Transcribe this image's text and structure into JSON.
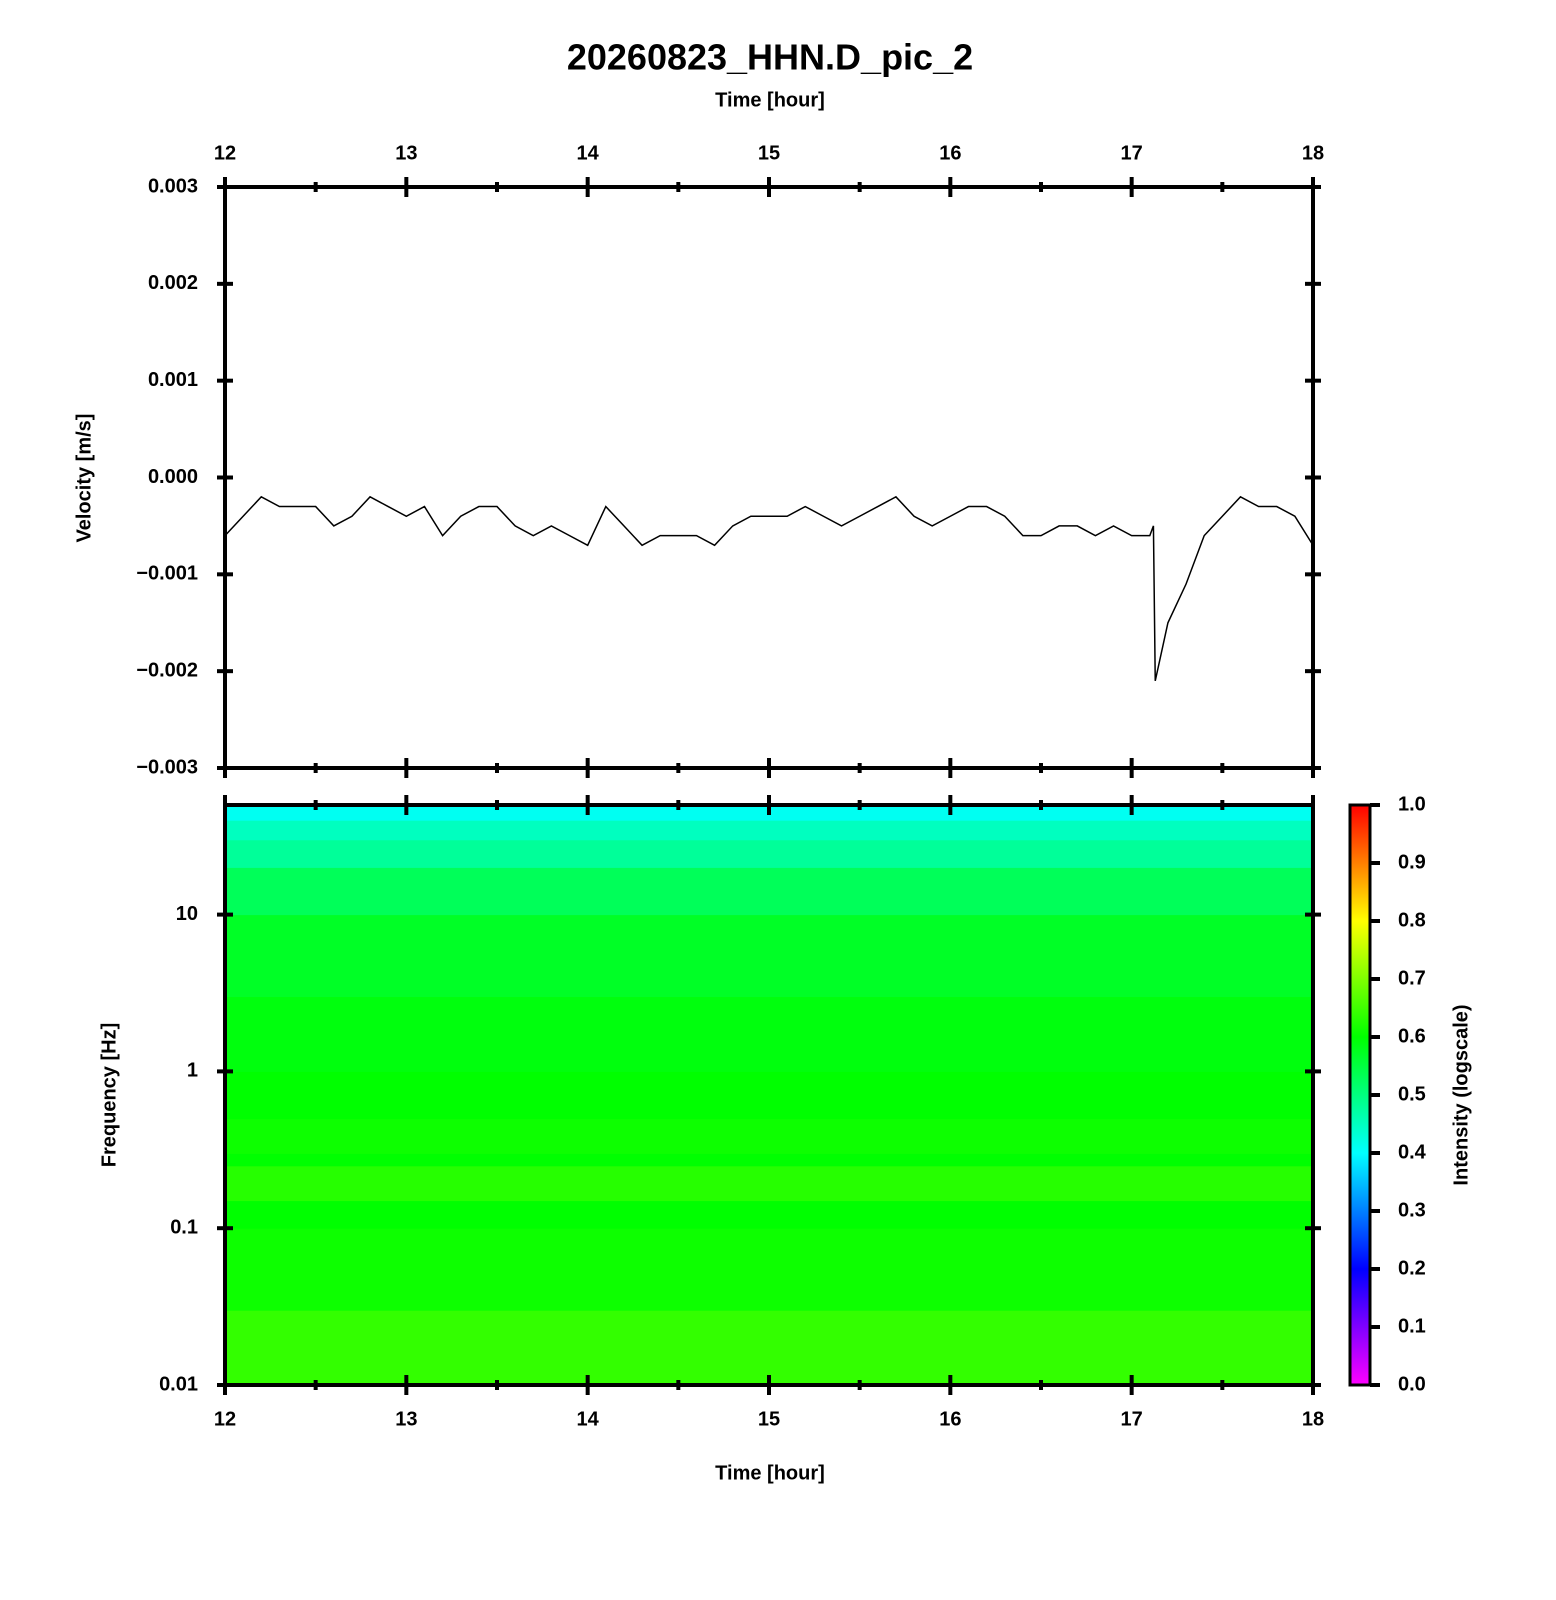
{
  "chart_data": [
    {
      "type": "line",
      "title": "20260823_HHN.D_pic_2",
      "x_label": "Time [hour]",
      "y_label": "Velocity [m/s]",
      "color": "#000000",
      "x": [
        12.0,
        12.1,
        12.2,
        12.3,
        12.4,
        12.5,
        12.6,
        12.7,
        12.8,
        12.9,
        13.0,
        13.1,
        13.2,
        13.3,
        13.4,
        13.5,
        13.6,
        13.7,
        13.8,
        13.9,
        14.0,
        14.1,
        14.2,
        14.3,
        14.4,
        14.5,
        14.6,
        14.7,
        14.8,
        14.9,
        15.0,
        15.1,
        15.2,
        15.3,
        15.4,
        15.5,
        15.6,
        15.7,
        15.8,
        15.9,
        16.0,
        16.1,
        16.2,
        16.3,
        16.4,
        16.5,
        16.6,
        16.7,
        16.8,
        16.9,
        17.0,
        17.1,
        17.12,
        17.13,
        17.2,
        17.3,
        17.4,
        17.5,
        17.6,
        17.7,
        17.8,
        17.9,
        18.0
      ],
      "values": [
        -0.0006,
        -0.0004,
        -0.0002,
        -0.0003,
        -0.0003,
        -0.0003,
        -0.0005,
        -0.0004,
        -0.0002,
        -0.0003,
        -0.0004,
        -0.0003,
        -0.0006,
        -0.0004,
        -0.0003,
        -0.0003,
        -0.0005,
        -0.0006,
        -0.0005,
        -0.0006,
        -0.0007,
        -0.0003,
        -0.0005,
        -0.0007,
        -0.0006,
        -0.0006,
        -0.0006,
        -0.0007,
        -0.0005,
        -0.0004,
        -0.0004,
        -0.0004,
        -0.0003,
        -0.0004,
        -0.0005,
        -0.0004,
        -0.0003,
        -0.0002,
        -0.0004,
        -0.0005,
        -0.0004,
        -0.0003,
        -0.0003,
        -0.0004,
        -0.0006,
        -0.0006,
        -0.0005,
        -0.0005,
        -0.0006,
        -0.0005,
        -0.0006,
        -0.0006,
        -0.0005,
        -0.0021,
        -0.0015,
        -0.0011,
        -0.0006,
        -0.0004,
        -0.0002,
        -0.0003,
        -0.0003,
        -0.0004,
        -0.0007
      ],
      "xlim": [
        12,
        18
      ],
      "xticks": [
        12,
        13,
        14,
        15,
        16,
        17,
        18
      ],
      "xminorticks": [
        12.5,
        13.5,
        14.5,
        15.5,
        16.5,
        17.5
      ],
      "ylim": [
        -0.003,
        0.003
      ],
      "yticks": [
        {
          "value": -0.003,
          "label": "−0.003"
        },
        {
          "value": -0.002,
          "label": "−0.002"
        },
        {
          "value": -0.001,
          "label": "−0.001"
        },
        {
          "value": 0,
          "label": "0.000"
        },
        0.001,
        0.002,
        0.003
      ]
    },
    {
      "type": "heatmap",
      "x_label": "Time [hour]",
      "y_label": "Frequency [Hz]",
      "colorbar_label": "Intensity (logscale)",
      "yscale": "log",
      "x_edges": [
        12,
        18
      ],
      "y_edges": [
        0.01,
        0.03,
        0.1,
        0.15,
        0.25,
        0.3,
        0.5,
        1,
        3,
        10,
        20,
        30,
        40,
        50
      ],
      "values": [
        0.64,
        0.61,
        0.6,
        0.63,
        0.6,
        0.61,
        0.6,
        0.59,
        0.57,
        0.53,
        0.48,
        0.45,
        0.41
      ],
      "colormap": [
        "#ff00ff",
        "#0000ff",
        "#00ffff",
        "#00ff00",
        "#ffff00",
        "#ff0000"
      ],
      "clim": [
        0,
        1
      ],
      "cticks": [
        {
          "value": 0,
          "label": "0.0"
        },
        {
          "value": 0.1,
          "label": "0.1"
        },
        {
          "value": 0.2,
          "label": "0.2"
        },
        {
          "value": 0.3,
          "label": "0.3"
        },
        {
          "value": 0.4,
          "label": "0.4"
        },
        {
          "value": 0.5,
          "label": "0.5"
        },
        {
          "value": 0.6,
          "label": "0.6"
        },
        {
          "value": 0.7,
          "label": "0.7"
        },
        {
          "value": 0.8,
          "label": "0.8"
        },
        {
          "value": 0.9,
          "label": "0.9"
        },
        {
          "value": 1,
          "label": "1.0"
        }
      ],
      "xlim": [
        12,
        18
      ],
      "xticks": [
        12,
        13,
        14,
        15,
        16,
        17,
        18
      ],
      "xminorticks": [
        12.5,
        13.5,
        14.5,
        15.5,
        16.5,
        17.5
      ],
      "ylim": [
        0.01,
        50
      ],
      "yticks": [
        0.01,
        0.1,
        1,
        10
      ]
    }
  ]
}
